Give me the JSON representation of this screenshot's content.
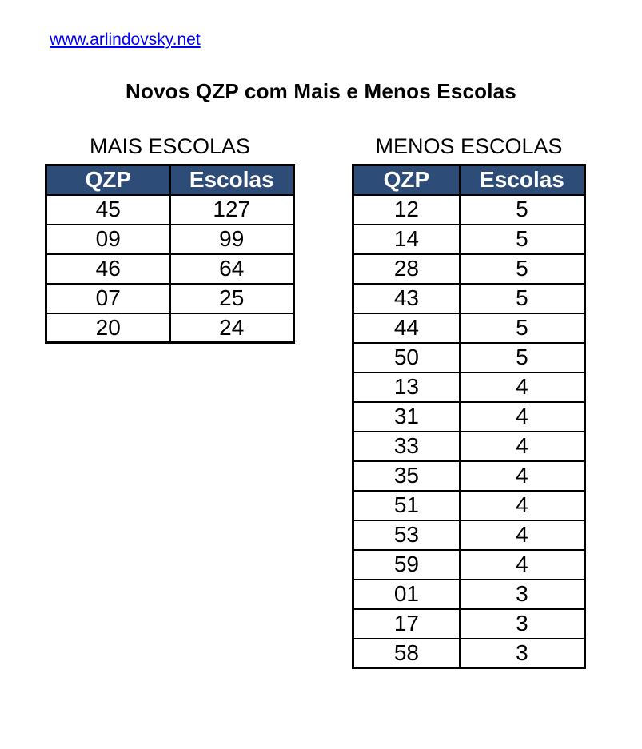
{
  "page": {
    "link_text": "www.arlindovsky.net",
    "title": "Novos QZP com Mais e Menos Escolas"
  },
  "colors": {
    "header_bg": "#2e4c78",
    "header_text": "#ffffff",
    "link": "#0000ff",
    "border": "#000000"
  },
  "tables": [
    {
      "title": "MAIS ESCOLAS",
      "headers": [
        "QZP",
        "Escolas"
      ],
      "rows": [
        [
          "45",
          "127"
        ],
        [
          "09",
          "99"
        ],
        [
          "46",
          "64"
        ],
        [
          "07",
          "25"
        ],
        [
          "20",
          "24"
        ]
      ]
    },
    {
      "title": "MENOS ESCOLAS",
      "headers": [
        "QZP",
        "Escolas"
      ],
      "rows": [
        [
          "12",
          "5"
        ],
        [
          "14",
          "5"
        ],
        [
          "28",
          "5"
        ],
        [
          "43",
          "5"
        ],
        [
          "44",
          "5"
        ],
        [
          "50",
          "5"
        ],
        [
          "13",
          "4"
        ],
        [
          "31",
          "4"
        ],
        [
          "33",
          "4"
        ],
        [
          "35",
          "4"
        ],
        [
          "51",
          "4"
        ],
        [
          "53",
          "4"
        ],
        [
          "59",
          "4"
        ],
        [
          "01",
          "3"
        ],
        [
          "17",
          "3"
        ],
        [
          "58",
          "3"
        ]
      ]
    }
  ]
}
